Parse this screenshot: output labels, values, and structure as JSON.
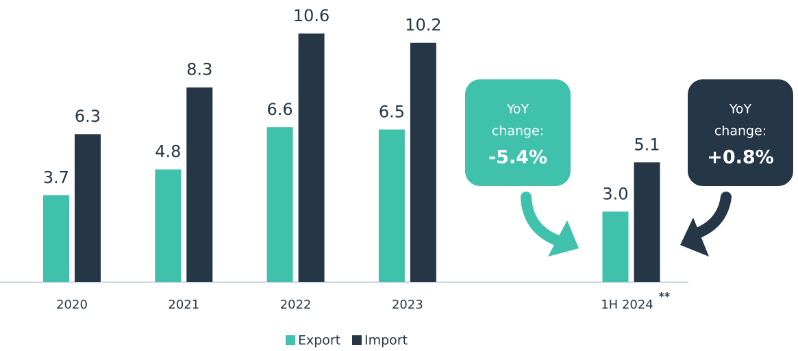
{
  "chart_data": {
    "type": "bar",
    "categories": [
      "2020",
      "2021",
      "2022",
      "2023",
      "1H 2024"
    ],
    "category_marker": "**",
    "series": [
      {
        "name": "Export",
        "color": "#40c1ac",
        "values": [
          3.7,
          4.8,
          6.6,
          6.5,
          3.0
        ],
        "value_labels": [
          "3.7",
          "4.8",
          "6.6",
          "6.5",
          "3.0"
        ]
      },
      {
        "name": "Import",
        "color": "#253746",
        "values": [
          6.3,
          8.3,
          10.6,
          10.2,
          5.1
        ]
      }
    ],
    "ylim": [
      0,
      12
    ],
    "annotations": [
      {
        "lines": [
          "YoY",
          "change:"
        ],
        "value": "-5.4%",
        "color": "#40c1ac"
      },
      {
        "lines": [
          "YoY",
          "change:"
        ],
        "value": "+0.8%",
        "color": "#253746"
      }
    ]
  }
}
